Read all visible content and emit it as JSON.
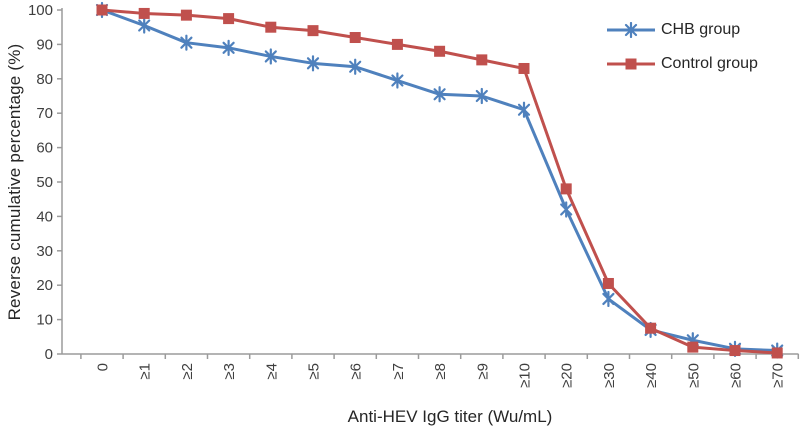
{
  "chart_data": {
    "type": "line",
    "title": "",
    "xlabel": "Anti-HEV IgG titer (Wu/mL)",
    "ylabel": "Reverse cumulative percentage (%)",
    "ylim": [
      0,
      100
    ],
    "yticks": [
      0,
      10,
      20,
      30,
      40,
      50,
      60,
      70,
      80,
      90,
      100
    ],
    "categories": [
      "0",
      "≥1",
      "≥2",
      "≥3",
      "≥4",
      "≥5",
      "≥6",
      "≥7",
      "≥8",
      "≥9",
      "≥10",
      "≥20",
      "≥30",
      "≥40",
      "≥50",
      "≥60",
      "≥70"
    ],
    "series": [
      {
        "name": "CHB group",
        "color": "#4F81BD",
        "marker": "asterisk",
        "values": [
          100,
          95.5,
          90.5,
          89,
          86.5,
          84.5,
          83.5,
          79.5,
          75.5,
          75,
          71,
          42,
          16,
          7,
          4,
          1.5,
          1
        ]
      },
      {
        "name": "Control group",
        "color": "#C0504D",
        "marker": "square",
        "values": [
          100,
          99,
          98.5,
          97.5,
          95,
          94,
          92,
          90,
          88,
          85.5,
          83,
          48,
          20.5,
          7.5,
          2,
          1,
          0.3
        ]
      }
    ],
    "legend_position": "upper-right",
    "grid": false,
    "colors": {
      "axis": "#9b9b9b",
      "tick_text": "#3f3f3f"
    }
  }
}
